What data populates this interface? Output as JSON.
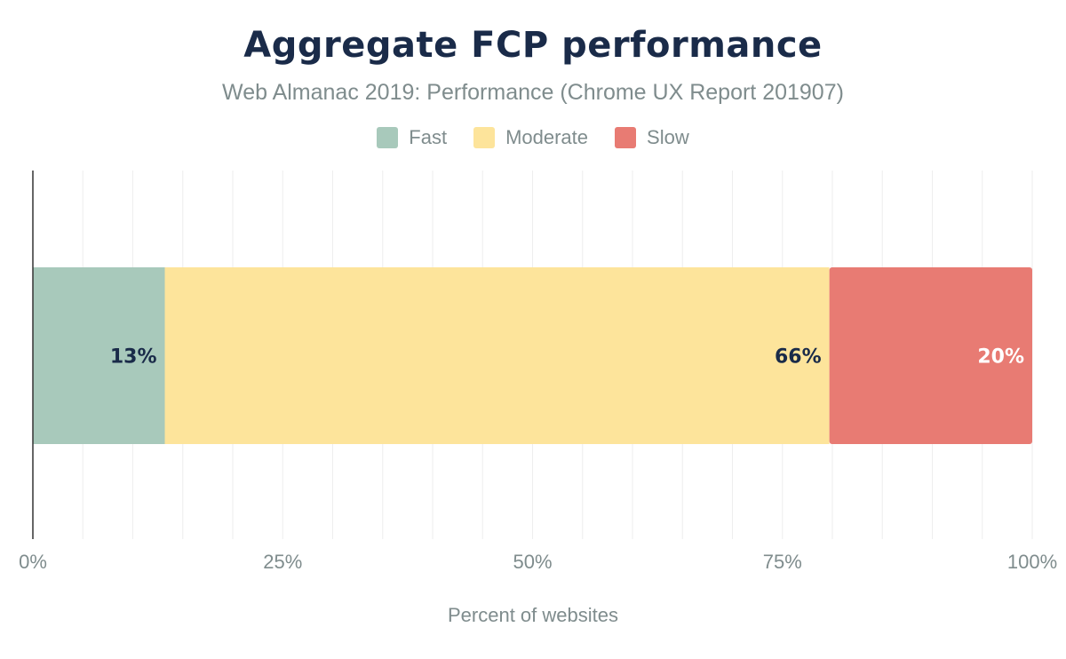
{
  "chart_data": {
    "type": "bar",
    "orientation": "horizontal",
    "stacked": true,
    "title": "Aggregate FCP performance",
    "subtitle": "Web Almanac 2019: Performance (Chrome UX Report 201907)",
    "xlabel": "Percent of websites",
    "xlim": [
      0,
      100
    ],
    "xticks": [
      "0%",
      "25%",
      "50%",
      "75%",
      "100%"
    ],
    "grid": true,
    "legend_placement": "top",
    "series": [
      {
        "name": "Fast",
        "value": 13.2,
        "label": "13%",
        "color": "#a8c9bb",
        "label_color": "#1a2b49"
      },
      {
        "name": "Moderate",
        "value": 66.5,
        "label": "66%",
        "color": "#fde49b",
        "label_color": "#1a2b49"
      },
      {
        "name": "Slow",
        "value": 20.3,
        "label": "20%",
        "color": "#e87b73",
        "label_color": "#ffffff"
      }
    ]
  }
}
